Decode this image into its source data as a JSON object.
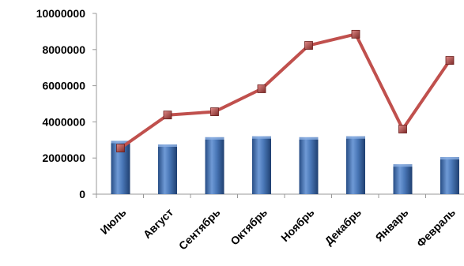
{
  "chart_data": {
    "type": "bar",
    "categories": [
      "Июль",
      "Август",
      "Сентябрь",
      "Октябрь",
      "Ноябрь",
      "Декабрь",
      "Январь",
      "Февраль"
    ],
    "series": [
      {
        "type": "bar",
        "values": [
          2950000,
          2750000,
          3150000,
          3200000,
          3150000,
          3200000,
          1650000,
          2050000
        ],
        "color": "#4a78b8"
      },
      {
        "type": "line",
        "values": [
          2550000,
          4380000,
          4560000,
          5830000,
          8230000,
          8850000,
          3600000,
          7400000
        ],
        "color": "#c0504d"
      }
    ],
    "ylim": [
      0,
      10000000
    ],
    "yticks": [
      "0",
      "2000000",
      "4000000",
      "6000000",
      "8000000",
      "10000000"
    ],
    "grid": false,
    "legend": "none"
  }
}
